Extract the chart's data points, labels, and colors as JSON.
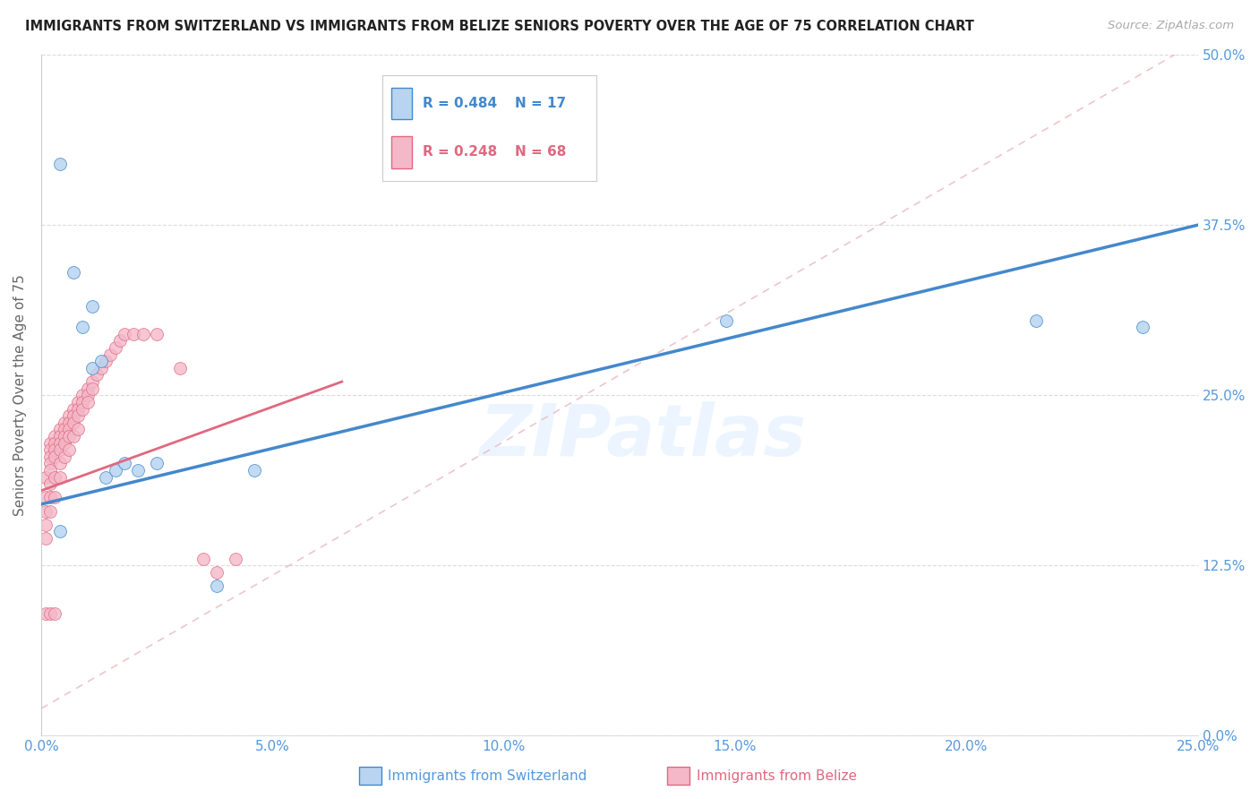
{
  "title": "IMMIGRANTS FROM SWITZERLAND VS IMMIGRANTS FROM BELIZE SENIORS POVERTY OVER THE AGE OF 75 CORRELATION CHART",
  "source": "Source: ZipAtlas.com",
  "xlim": [
    0,
    0.25
  ],
  "ylim": [
    0,
    0.5
  ],
  "watermark": "ZIPatlas",
  "legend_r1": "R = 0.484",
  "legend_n1": "N = 17",
  "legend_r2": "R = 0.248",
  "legend_n2": "N = 68",
  "legend_label1": "Immigrants from Switzerland",
  "legend_label2": "Immigrants from Belize",
  "color_swiss": "#b8d4f0",
  "color_belize": "#f4b8c8",
  "color_line_swiss": "#4488cc",
  "color_line_belize": "#e06880",
  "color_dashed_line": "#e8b8c0",
  "swiss_x": [
    0.004,
    0.007,
    0.009,
    0.011,
    0.011,
    0.013,
    0.014,
    0.016,
    0.018,
    0.021,
    0.025,
    0.038,
    0.046,
    0.148,
    0.215,
    0.238,
    0.004
  ],
  "swiss_y": [
    0.42,
    0.34,
    0.3,
    0.27,
    0.315,
    0.275,
    0.19,
    0.195,
    0.2,
    0.195,
    0.2,
    0.11,
    0.195,
    0.305,
    0.305,
    0.3,
    0.15
  ],
  "belize_x": [
    0.001,
    0.001,
    0.001,
    0.001,
    0.001,
    0.002,
    0.002,
    0.002,
    0.002,
    0.002,
    0.002,
    0.002,
    0.002,
    0.003,
    0.003,
    0.003,
    0.003,
    0.003,
    0.003,
    0.004,
    0.004,
    0.004,
    0.004,
    0.004,
    0.004,
    0.005,
    0.005,
    0.005,
    0.005,
    0.005,
    0.006,
    0.006,
    0.006,
    0.006,
    0.006,
    0.007,
    0.007,
    0.007,
    0.007,
    0.008,
    0.008,
    0.008,
    0.008,
    0.009,
    0.009,
    0.009,
    0.01,
    0.01,
    0.01,
    0.011,
    0.011,
    0.012,
    0.013,
    0.014,
    0.015,
    0.016,
    0.017,
    0.018,
    0.02,
    0.022,
    0.025,
    0.03,
    0.035,
    0.038,
    0.042,
    0.001,
    0.002,
    0.003
  ],
  "belize_y": [
    0.19,
    0.175,
    0.165,
    0.155,
    0.145,
    0.215,
    0.21,
    0.205,
    0.2,
    0.195,
    0.185,
    0.175,
    0.165,
    0.22,
    0.215,
    0.21,
    0.205,
    0.19,
    0.175,
    0.225,
    0.22,
    0.215,
    0.21,
    0.2,
    0.19,
    0.23,
    0.225,
    0.22,
    0.215,
    0.205,
    0.235,
    0.23,
    0.225,
    0.22,
    0.21,
    0.24,
    0.235,
    0.23,
    0.22,
    0.245,
    0.24,
    0.235,
    0.225,
    0.25,
    0.245,
    0.24,
    0.255,
    0.25,
    0.245,
    0.26,
    0.255,
    0.265,
    0.27,
    0.275,
    0.28,
    0.285,
    0.29,
    0.295,
    0.295,
    0.295,
    0.295,
    0.27,
    0.13,
    0.12,
    0.13,
    0.09,
    0.09,
    0.09
  ]
}
